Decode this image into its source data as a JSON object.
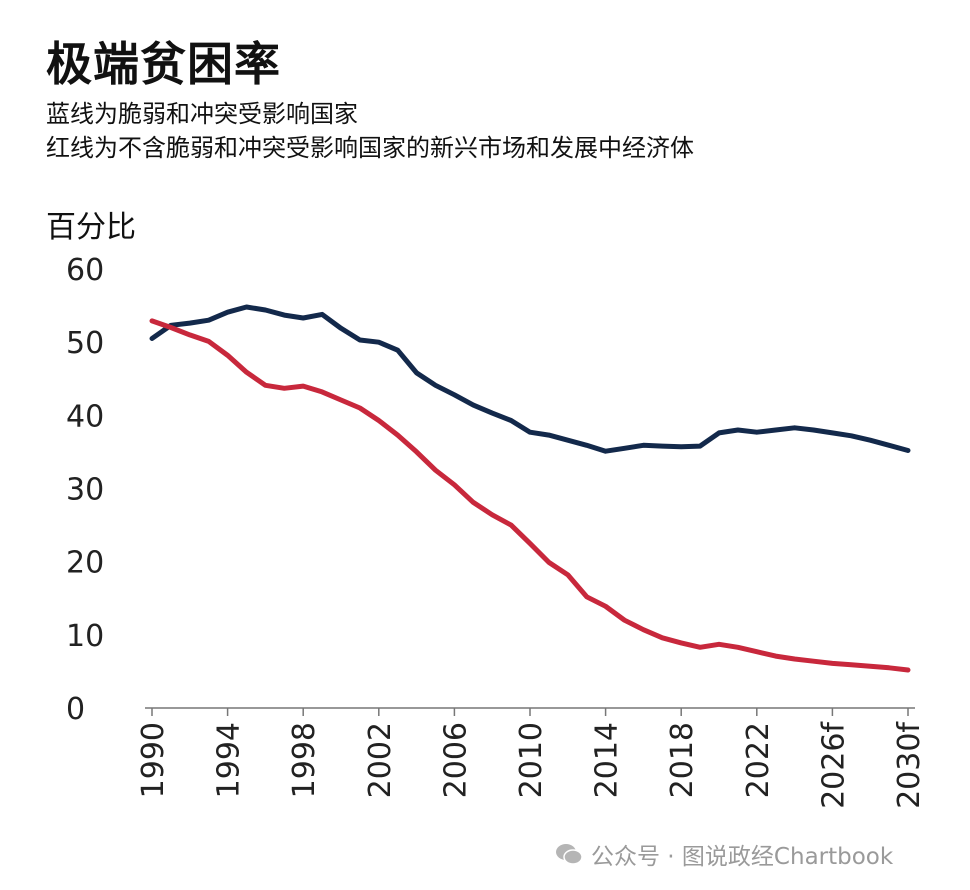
{
  "header": {
    "title": "极端贫困率",
    "subtitle_1": "蓝线为脆弱和冲突受影响国家",
    "subtitle_2": "红线为不含脆弱和冲突受影响国家的新兴市场和发展中经济体"
  },
  "watermark": "公众号 · 图说政经Chartbook",
  "chart_data": {
    "type": "line",
    "title": "极端贫困率",
    "ylabel": "百分比",
    "xlabel": "",
    "ylim": [
      0,
      60
    ],
    "xlim": [
      1990,
      2030
    ],
    "yticks": [
      0,
      10,
      20,
      30,
      40,
      50,
      60
    ],
    "xticks": [
      {
        "value": 1990,
        "label": "1990"
      },
      {
        "value": 1994,
        "label": "1994"
      },
      {
        "value": 1998,
        "label": "1998"
      },
      {
        "value": 2002,
        "label": "2002"
      },
      {
        "value": 2006,
        "label": "2006"
      },
      {
        "value": 2010,
        "label": "2010"
      },
      {
        "value": 2014,
        "label": "2014"
      },
      {
        "value": 2018,
        "label": "2018"
      },
      {
        "value": 2022,
        "label": "2022"
      },
      {
        "value": 2026,
        "label": "2026f"
      },
      {
        "value": 2030,
        "label": "2030f"
      }
    ],
    "grid": false,
    "x": [
      1990,
      1991,
      1992,
      1993,
      1994,
      1995,
      1996,
      1997,
      1998,
      1999,
      2000,
      2001,
      2002,
      2003,
      2004,
      2005,
      2006,
      2007,
      2008,
      2009,
      2010,
      2011,
      2012,
      2013,
      2014,
      2015,
      2016,
      2017,
      2018,
      2019,
      2020,
      2021,
      2022,
      2023,
      2024,
      2025,
      2026,
      2027,
      2028,
      2029,
      2030
    ],
    "series": [
      {
        "name": "脆弱和冲突受影响国家",
        "color": "#13294b",
        "values": [
          50.5,
          52.3,
          52.6,
          53.0,
          54.1,
          54.8,
          54.4,
          53.7,
          53.3,
          53.8,
          51.9,
          50.3,
          50.0,
          48.9,
          45.8,
          44.1,
          42.8,
          41.4,
          40.3,
          39.3,
          37.7,
          37.3,
          36.6,
          35.9,
          35.1,
          35.5,
          35.9,
          35.8,
          35.7,
          35.8,
          37.6,
          38.0,
          37.7,
          38.0,
          38.3,
          38.0,
          37.6,
          37.2,
          36.6,
          35.9,
          35.2
        ]
      },
      {
        "name": "不含脆弱和冲突受影响国家的新兴市场和发展中经济体",
        "color": "#c8283c",
        "values": [
          52.9,
          52.0,
          51.0,
          50.1,
          48.2,
          45.9,
          44.1,
          43.7,
          44.0,
          43.2,
          42.1,
          41.0,
          39.3,
          37.3,
          35.0,
          32.5,
          30.5,
          28.1,
          26.4,
          25.0,
          22.5,
          19.9,
          18.2,
          15.2,
          13.9,
          12.0,
          10.7,
          9.6,
          8.9,
          8.3,
          8.7,
          8.3,
          7.7,
          7.1,
          6.7,
          6.4,
          6.1,
          5.9,
          5.7,
          5.5,
          5.2
        ]
      }
    ]
  }
}
